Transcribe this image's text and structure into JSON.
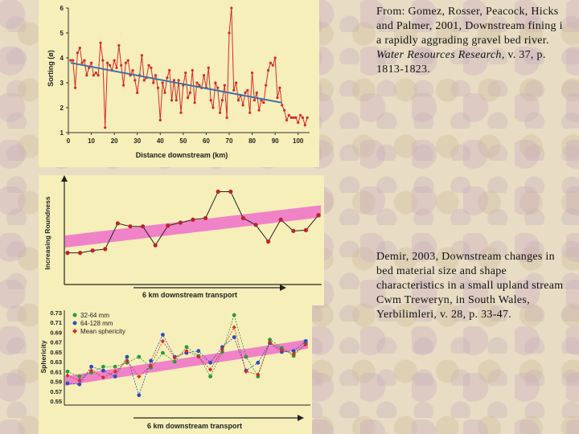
{
  "chart_data": [
    {
      "type": "line",
      "title": "",
      "xlabel": "Distance downstream (km)",
      "ylabel": "Sorting (ø)",
      "xlim": [
        0,
        105
      ],
      "ylim": [
        1,
        6
      ],
      "xticks": [
        0,
        10,
        20,
        30,
        40,
        50,
        60,
        70,
        80,
        90,
        100
      ],
      "yticks": [
        1,
        2,
        3,
        4,
        5,
        6
      ],
      "series": [
        {
          "name": "Sorting",
          "color": "#d42a2a",
          "x": [
            1,
            2,
            3,
            4,
            5,
            6,
            7,
            8,
            9,
            10,
            11,
            12,
            13,
            14,
            15,
            16,
            17,
            18,
            19,
            20,
            21,
            22,
            23,
            24,
            25,
            26,
            27,
            28,
            29,
            30,
            31,
            32,
            33,
            34,
            35,
            36,
            37,
            38,
            39,
            40,
            41,
            42,
            43,
            44,
            45,
            46,
            47,
            48,
            49,
            50,
            51,
            52,
            53,
            54,
            55,
            56,
            57,
            58,
            59,
            60,
            61,
            62,
            63,
            64,
            65,
            66,
            67,
            68,
            69,
            70,
            71,
            72,
            73,
            74,
            75,
            76,
            77,
            78,
            79,
            80,
            81,
            82,
            83,
            84,
            85,
            86,
            87,
            88,
            89,
            90,
            91,
            92,
            93,
            94,
            95,
            96,
            97,
            98,
            99,
            100,
            101,
            102,
            103,
            104
          ],
          "values": [
            3.9,
            3.9,
            2.8,
            4.2,
            4.4,
            3.8,
            3.9,
            3.3,
            3.6,
            3.8,
            3.3,
            3.4,
            3.3,
            4.6,
            3.9,
            1.2,
            3.8,
            3.7,
            3.5,
            3.9,
            3.6,
            4.5,
            3.7,
            2.9,
            3.8,
            3.9,
            3.3,
            3.5,
            3.1,
            2.6,
            3.3,
            4.1,
            3.1,
            3.2,
            3.7,
            3.6,
            3.0,
            3.3,
            2.8,
            1.5,
            3.0,
            2.6,
            3.2,
            3.5,
            2.3,
            3.1,
            2.3,
            3.1,
            1.8,
            2.9,
            3.4,
            2.4,
            2.6,
            3.5,
            2.2,
            3.0,
            2.9,
            2.8,
            3.3,
            2.8,
            3.6,
            2.3,
            2.0,
            3.0,
            2.8,
            1.8,
            2.3,
            2.9,
            1.6,
            5.0,
            6.0,
            2.7,
            3.0,
            2.3,
            2.5,
            2.1,
            2.6,
            2.7,
            1.8,
            3.4,
            2.3,
            2.6,
            1.9,
            2.3,
            2.2,
            2.9,
            3.5,
            3.8,
            3.7,
            4.0,
            2.4,
            2.8,
            2.1,
            1.9,
            1.5,
            1.7,
            1.6,
            1.6,
            1.6,
            1.4,
            1.7,
            1.6,
            1.3,
            1.6
          ]
        }
      ],
      "trendline": {
        "name": "Trend",
        "color": "#3c6fa8",
        "x": [
          1,
          93
        ],
        "values": [
          3.8,
          2.2
        ]
      }
    },
    {
      "type": "line",
      "title": "",
      "xlabel": "6 km downstream transport",
      "ylabel": "Increasing Roundness",
      "ylim": [
        0,
        10
      ],
      "series": [
        {
          "name": "Roundness",
          "color": "#222222",
          "x": [
            1,
            2,
            3,
            4,
            5,
            6,
            7,
            8,
            9,
            10,
            11,
            12,
            13,
            14,
            15,
            16,
            17,
            18,
            19,
            20,
            21
          ],
          "values": [
            1.0,
            1.0,
            1.3,
            1.5,
            4.9,
            4.5,
            4.5,
            2.0,
            4.6,
            5.0,
            5.4,
            5.6,
            9.1,
            9.1,
            5.6,
            4.7,
            2.5,
            5.4,
            3.9,
            4.0,
            6.0
          ]
        }
      ],
      "trend_band": {
        "color": "#f082c8",
        "start": [
          0.8,
          2.5
        ],
        "end": [
          21.2,
          6.5
        ],
        "half_width": 0.8
      }
    },
    {
      "type": "line",
      "title": "",
      "xlabel": "6 km downstream transport",
      "ylabel": "Sphericity",
      "ylim": [
        0.55,
        0.73
      ],
      "yticks": [
        0.55,
        0.57,
        0.59,
        0.61,
        0.63,
        0.65,
        0.67,
        0.69,
        0.71,
        0.73
      ],
      "legend": "top-left",
      "series": [
        {
          "name": "32-64 mm",
          "color": "#2a9a3a",
          "x": [
            1,
            2,
            3,
            4,
            5,
            6,
            7,
            8,
            9,
            10,
            11,
            12,
            13,
            14,
            15,
            16,
            17,
            18,
            19,
            20,
            21
          ],
          "values": [
            0.61,
            0.6,
            0.608,
            0.62,
            0.62,
            0.628,
            0.64,
            0.618,
            0.648,
            0.63,
            0.66,
            0.642,
            0.6,
            0.65,
            0.725,
            0.64,
            0.6,
            0.675,
            0.658,
            0.642,
            0.668
          ]
        },
        {
          "name": "64-128 mm",
          "color": "#2a4fb8",
          "x": [
            1,
            2,
            3,
            4,
            5,
            6,
            7,
            8,
            9,
            10,
            11,
            12,
            13,
            14,
            15,
            16,
            17,
            18,
            19,
            20,
            21
          ],
          "values": [
            0.586,
            0.584,
            0.62,
            0.612,
            0.6,
            0.64,
            0.562,
            0.632,
            0.685,
            0.64,
            0.648,
            0.652,
            0.628,
            0.66,
            0.68,
            0.612,
            0.628,
            0.668,
            0.65,
            0.652,
            0.672
          ]
        },
        {
          "name": "Mean sphericity",
          "color": "#d42a2a",
          "x": [
            1,
            2,
            3,
            4,
            5,
            6,
            7,
            8,
            9,
            10,
            11,
            12,
            13,
            14,
            15,
            16,
            17,
            18,
            19,
            20,
            21
          ],
          "values": [
            0.602,
            0.592,
            0.612,
            0.598,
            0.61,
            0.632,
            0.6,
            0.622,
            0.672,
            0.638,
            0.652,
            0.64,
            0.614,
            0.655,
            0.7,
            0.61,
            0.604,
            0.67,
            0.654,
            0.646,
            0.665
          ]
        }
      ],
      "trend_band": {
        "color": "#f082c8",
        "start": [
          0.8,
          0.591
        ],
        "end": [
          21.2,
          0.666
        ],
        "half_width": 0.0095
      }
    }
  ],
  "citations": {
    "gomez": {
      "line1": "From: Gomez, Rosser, Peacock, Hicks",
      "line2": "and Palmer, 2001, Downstream fining i",
      "line3": "a rapidly aggrading gravel bed river.",
      "line4a": "Water Resources Research,",
      "line4b": " v. 37, p.",
      "line5": "1813-1823."
    },
    "demir": {
      "line1": "Demir, 2003, Downstream changes in",
      "line2": "bed material size and shape",
      "line3": "characteristics in a small upland stream",
      "line4": "Cwm Treweryn, in South Wales,",
      "line5": "Yerbilimleri, v. 28, p. 33-47."
    }
  }
}
